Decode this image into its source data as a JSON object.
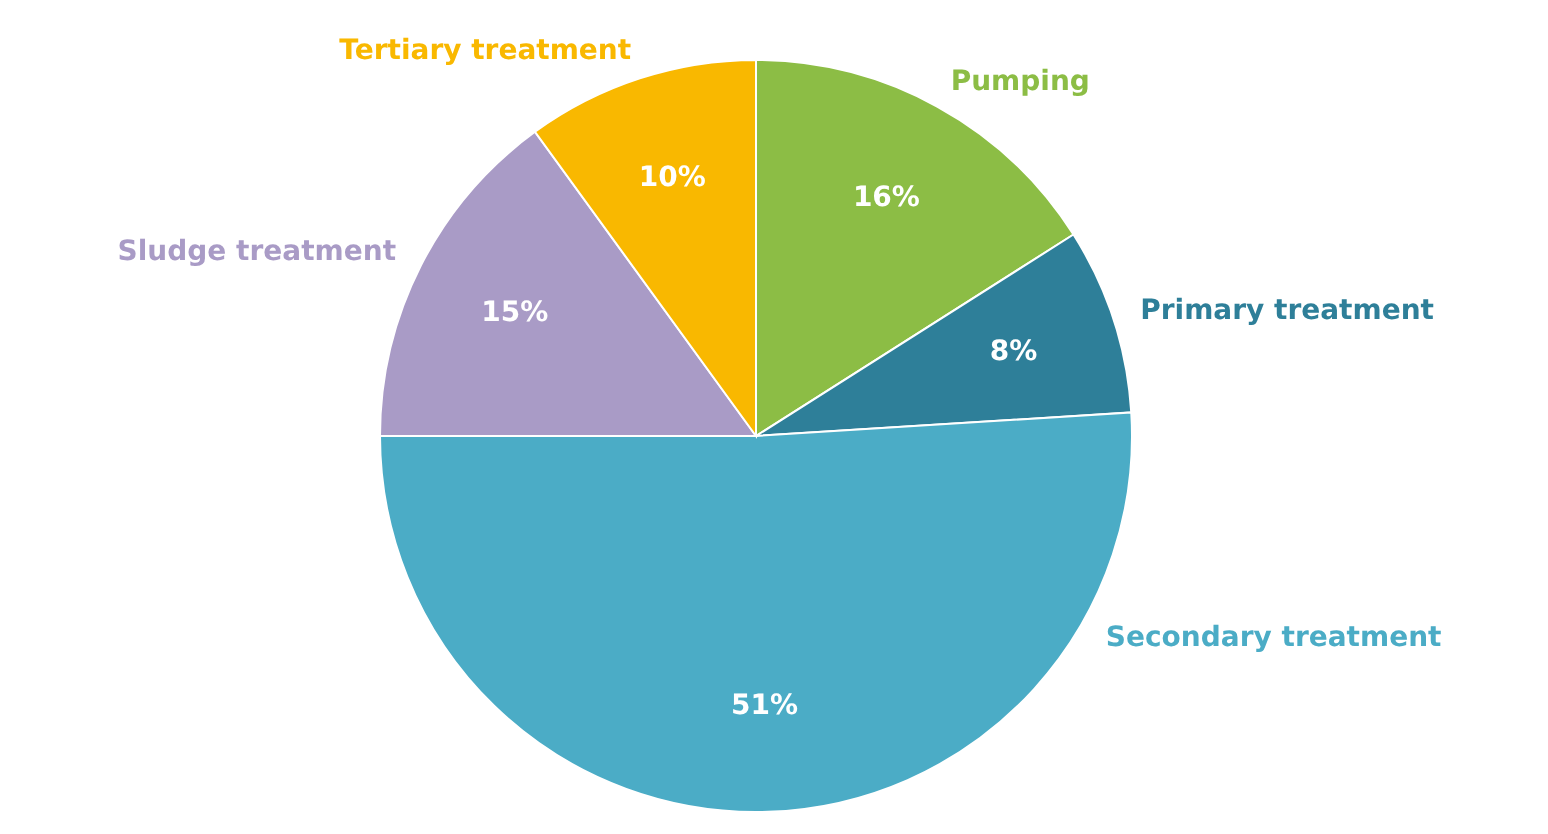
{
  "chart_data": {
    "type": "pie",
    "categories": [
      "Pumping",
      "Primary treatment",
      "Secondary treatment",
      "Sludge treatment",
      "Tertiary treatment"
    ],
    "values": [
      16,
      8,
      51,
      15,
      10
    ],
    "value_labels": [
      "16%",
      "8%",
      "51%",
      "15%",
      "10%"
    ],
    "colors": [
      "#8cbd45",
      "#2e7f99",
      "#4bacc6",
      "#a99bc6",
      "#f9b800"
    ]
  }
}
